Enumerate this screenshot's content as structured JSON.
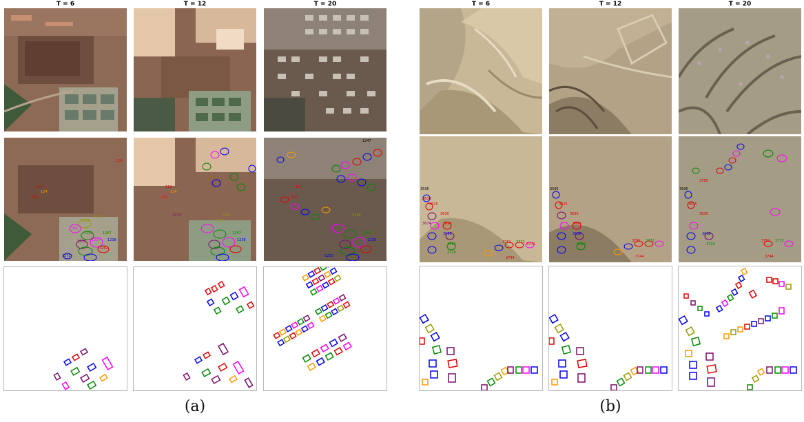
{
  "panels": [
    {
      "caption": "(a)",
      "timesteps": [
        "T = 6",
        "T = 12",
        "T = 20"
      ]
    },
    {
      "caption": "(b)",
      "timesteps": [
        "T = 6",
        "T = 12",
        "T = 20"
      ]
    }
  ],
  "row_descriptions": [
    "satellite image",
    "image with tracked building outlines and IDs",
    "building footprint masks"
  ],
  "label_colors": {
    "red": "#e00000",
    "blue": "#0000ee",
    "green": "#008800",
    "magenta": "#ff00ff",
    "orange": "#ff9900",
    "olive": "#999900",
    "purple": "#7a0a6a"
  },
  "ids_a": [
    "129",
    "112",
    "124",
    "131",
    "1156",
    "1135",
    "156",
    "1201",
    "1202",
    "1227",
    "1262",
    "1267",
    "1238",
    "1272",
    "1273",
    "1247",
    "1250"
  ],
  "ids_b": [
    "3595",
    "3610",
    "3625",
    "3630",
    "3655",
    "3664",
    "3674",
    "3694",
    "3698",
    "3703",
    "3720",
    "3728",
    "3734",
    "3761",
    "3772",
    "3774",
    "3744",
    "3785"
  ]
}
